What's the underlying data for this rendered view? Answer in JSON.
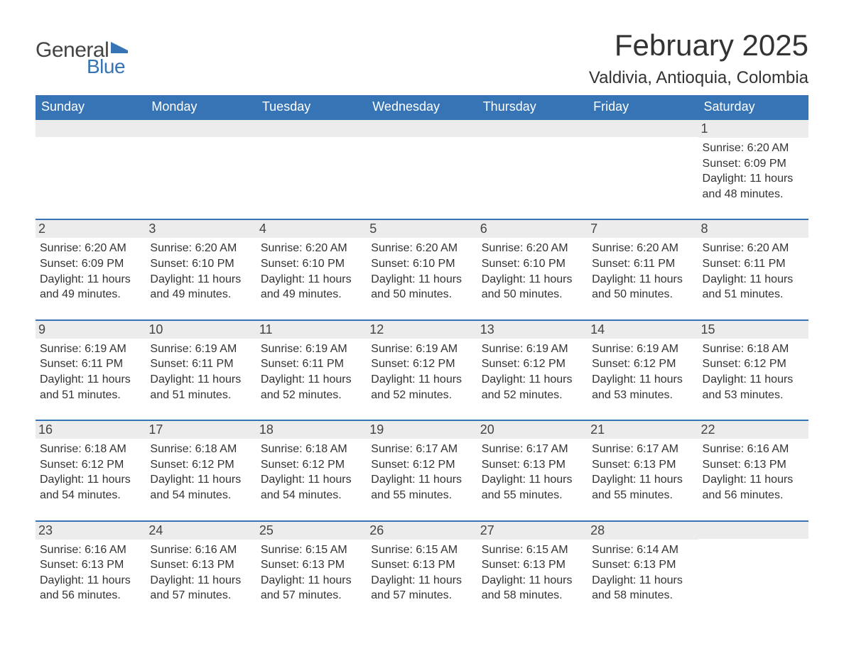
{
  "logo": {
    "text_general": "General",
    "text_blue": "Blue",
    "flag_color": "#3674b6",
    "general_color": "#444444",
    "blue_color": "#3674b6"
  },
  "header": {
    "month_title": "February 2025",
    "location": "Valdivia, Antioquia, Colombia"
  },
  "colors": {
    "header_bg": "#3674b6",
    "header_text": "#ffffff",
    "band_bg": "#ececec",
    "row_border": "#3674b6",
    "body_text": "#333333",
    "page_bg": "#ffffff"
  },
  "typography": {
    "title_fontsize": 42,
    "location_fontsize": 24,
    "dow_fontsize": 18,
    "daynum_fontsize": 18,
    "body_fontsize": 16,
    "font_family": "Arial"
  },
  "layout": {
    "columns": 7,
    "rows": 5,
    "blank_leading_cells": 6
  },
  "days_of_week": [
    "Sunday",
    "Monday",
    "Tuesday",
    "Wednesday",
    "Thursday",
    "Friday",
    "Saturday"
  ],
  "weeks": [
    [
      null,
      null,
      null,
      null,
      null,
      null,
      {
        "num": "1",
        "sunrise": "Sunrise: 6:20 AM",
        "sunset": "Sunset: 6:09 PM",
        "d1": "Daylight: 11 hours",
        "d2": "and 48 minutes."
      }
    ],
    [
      {
        "num": "2",
        "sunrise": "Sunrise: 6:20 AM",
        "sunset": "Sunset: 6:09 PM",
        "d1": "Daylight: 11 hours",
        "d2": "and 49 minutes."
      },
      {
        "num": "3",
        "sunrise": "Sunrise: 6:20 AM",
        "sunset": "Sunset: 6:10 PM",
        "d1": "Daylight: 11 hours",
        "d2": "and 49 minutes."
      },
      {
        "num": "4",
        "sunrise": "Sunrise: 6:20 AM",
        "sunset": "Sunset: 6:10 PM",
        "d1": "Daylight: 11 hours",
        "d2": "and 49 minutes."
      },
      {
        "num": "5",
        "sunrise": "Sunrise: 6:20 AM",
        "sunset": "Sunset: 6:10 PM",
        "d1": "Daylight: 11 hours",
        "d2": "and 50 minutes."
      },
      {
        "num": "6",
        "sunrise": "Sunrise: 6:20 AM",
        "sunset": "Sunset: 6:10 PM",
        "d1": "Daylight: 11 hours",
        "d2": "and 50 minutes."
      },
      {
        "num": "7",
        "sunrise": "Sunrise: 6:20 AM",
        "sunset": "Sunset: 6:11 PM",
        "d1": "Daylight: 11 hours",
        "d2": "and 50 minutes."
      },
      {
        "num": "8",
        "sunrise": "Sunrise: 6:20 AM",
        "sunset": "Sunset: 6:11 PM",
        "d1": "Daylight: 11 hours",
        "d2": "and 51 minutes."
      }
    ],
    [
      {
        "num": "9",
        "sunrise": "Sunrise: 6:19 AM",
        "sunset": "Sunset: 6:11 PM",
        "d1": "Daylight: 11 hours",
        "d2": "and 51 minutes."
      },
      {
        "num": "10",
        "sunrise": "Sunrise: 6:19 AM",
        "sunset": "Sunset: 6:11 PM",
        "d1": "Daylight: 11 hours",
        "d2": "and 51 minutes."
      },
      {
        "num": "11",
        "sunrise": "Sunrise: 6:19 AM",
        "sunset": "Sunset: 6:11 PM",
        "d1": "Daylight: 11 hours",
        "d2": "and 52 minutes."
      },
      {
        "num": "12",
        "sunrise": "Sunrise: 6:19 AM",
        "sunset": "Sunset: 6:12 PM",
        "d1": "Daylight: 11 hours",
        "d2": "and 52 minutes."
      },
      {
        "num": "13",
        "sunrise": "Sunrise: 6:19 AM",
        "sunset": "Sunset: 6:12 PM",
        "d1": "Daylight: 11 hours",
        "d2": "and 52 minutes."
      },
      {
        "num": "14",
        "sunrise": "Sunrise: 6:19 AM",
        "sunset": "Sunset: 6:12 PM",
        "d1": "Daylight: 11 hours",
        "d2": "and 53 minutes."
      },
      {
        "num": "15",
        "sunrise": "Sunrise: 6:18 AM",
        "sunset": "Sunset: 6:12 PM",
        "d1": "Daylight: 11 hours",
        "d2": "and 53 minutes."
      }
    ],
    [
      {
        "num": "16",
        "sunrise": "Sunrise: 6:18 AM",
        "sunset": "Sunset: 6:12 PM",
        "d1": "Daylight: 11 hours",
        "d2": "and 54 minutes."
      },
      {
        "num": "17",
        "sunrise": "Sunrise: 6:18 AM",
        "sunset": "Sunset: 6:12 PM",
        "d1": "Daylight: 11 hours",
        "d2": "and 54 minutes."
      },
      {
        "num": "18",
        "sunrise": "Sunrise: 6:18 AM",
        "sunset": "Sunset: 6:12 PM",
        "d1": "Daylight: 11 hours",
        "d2": "and 54 minutes."
      },
      {
        "num": "19",
        "sunrise": "Sunrise: 6:17 AM",
        "sunset": "Sunset: 6:12 PM",
        "d1": "Daylight: 11 hours",
        "d2": "and 55 minutes."
      },
      {
        "num": "20",
        "sunrise": "Sunrise: 6:17 AM",
        "sunset": "Sunset: 6:13 PM",
        "d1": "Daylight: 11 hours",
        "d2": "and 55 minutes."
      },
      {
        "num": "21",
        "sunrise": "Sunrise: 6:17 AM",
        "sunset": "Sunset: 6:13 PM",
        "d1": "Daylight: 11 hours",
        "d2": "and 55 minutes."
      },
      {
        "num": "22",
        "sunrise": "Sunrise: 6:16 AM",
        "sunset": "Sunset: 6:13 PM",
        "d1": "Daylight: 11 hours",
        "d2": "and 56 minutes."
      }
    ],
    [
      {
        "num": "23",
        "sunrise": "Sunrise: 6:16 AM",
        "sunset": "Sunset: 6:13 PM",
        "d1": "Daylight: 11 hours",
        "d2": "and 56 minutes."
      },
      {
        "num": "24",
        "sunrise": "Sunrise: 6:16 AM",
        "sunset": "Sunset: 6:13 PM",
        "d1": "Daylight: 11 hours",
        "d2": "and 57 minutes."
      },
      {
        "num": "25",
        "sunrise": "Sunrise: 6:15 AM",
        "sunset": "Sunset: 6:13 PM",
        "d1": "Daylight: 11 hours",
        "d2": "and 57 minutes."
      },
      {
        "num": "26",
        "sunrise": "Sunrise: 6:15 AM",
        "sunset": "Sunset: 6:13 PM",
        "d1": "Daylight: 11 hours",
        "d2": "and 57 minutes."
      },
      {
        "num": "27",
        "sunrise": "Sunrise: 6:15 AM",
        "sunset": "Sunset: 6:13 PM",
        "d1": "Daylight: 11 hours",
        "d2": "and 58 minutes."
      },
      {
        "num": "28",
        "sunrise": "Sunrise: 6:14 AM",
        "sunset": "Sunset: 6:13 PM",
        "d1": "Daylight: 11 hours",
        "d2": "and 58 minutes."
      },
      null
    ]
  ]
}
